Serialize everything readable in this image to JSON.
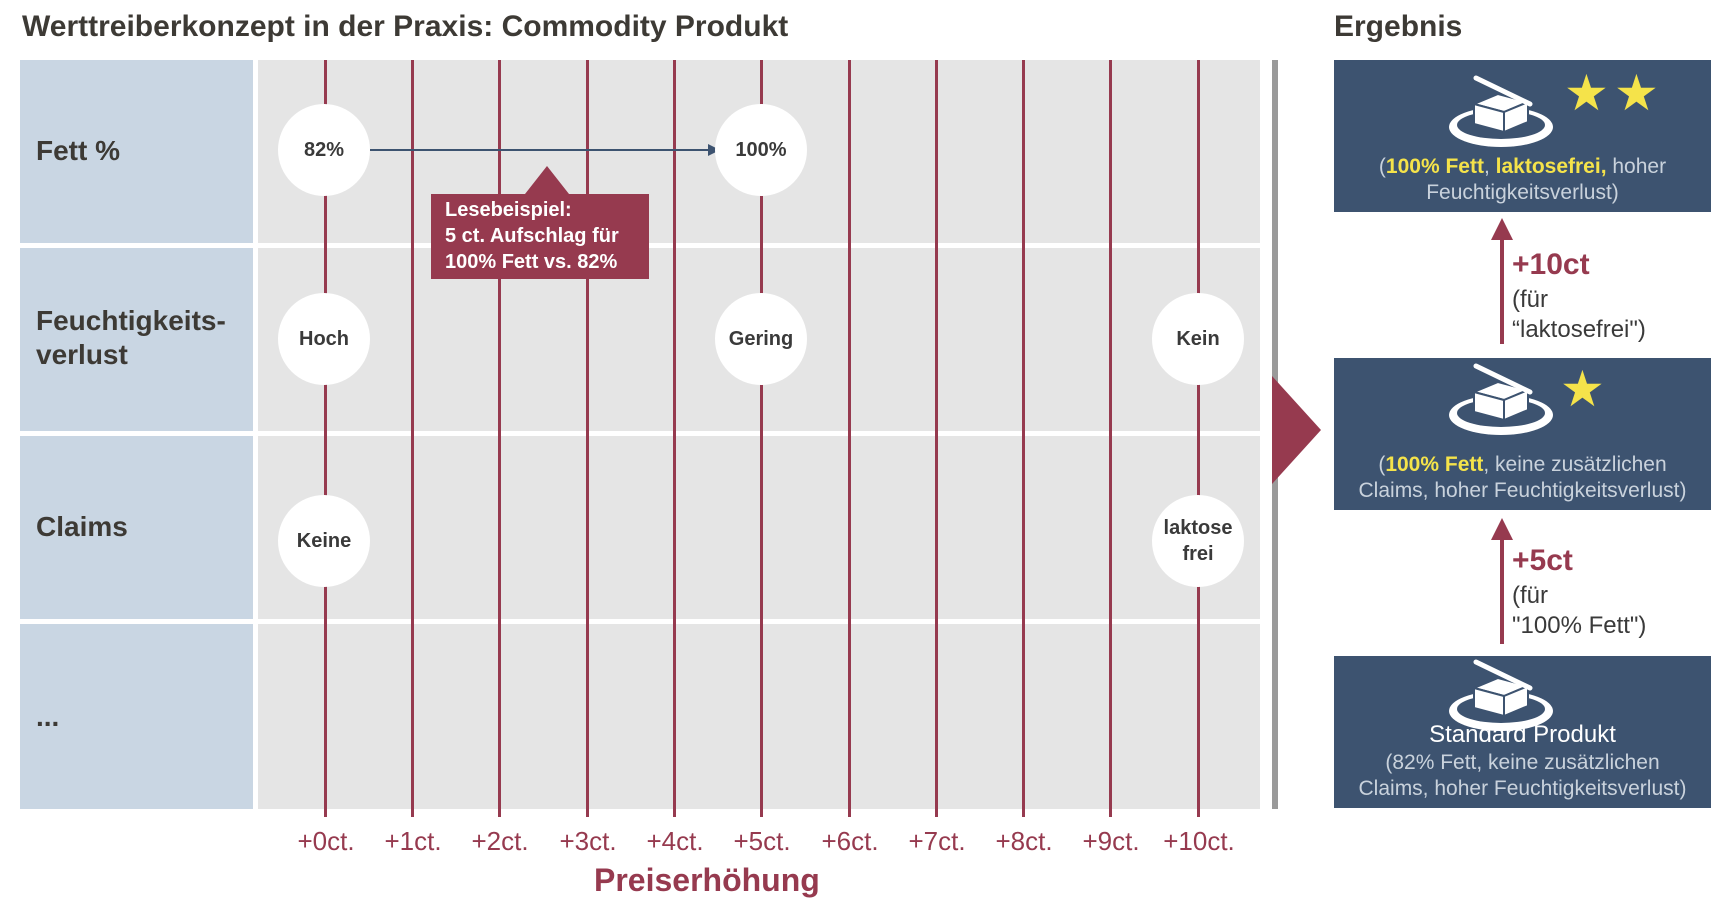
{
  "title": "Werttreiberkonzept  in der Praxis: Commodity Produkt",
  "result_title": "Ergebnis",
  "rows": [
    {
      "label_line1": "Fett %",
      "label_line2": ""
    },
    {
      "label_line1": "Feuchtigkeits-",
      "label_line2": "verlust"
    },
    {
      "label_line1": "Claims",
      "label_line2": ""
    },
    {
      "label_line1": "...",
      "label_line2": ""
    }
  ],
  "x_ticks": [
    "+0ct.",
    "+1ct.",
    "+2ct.",
    "+3ct.",
    "+4ct.",
    "+5ct.",
    "+6ct.",
    "+7ct.",
    "+8ct.",
    "+9ct.",
    "+10ct."
  ],
  "x_axis_label": "Preiserhöhung",
  "nodes": {
    "fett_82": "82%",
    "fett_100": "100%",
    "feucht_hoch": "Hoch",
    "feucht_gering": "Gering",
    "feucht_kein": "Kein",
    "claims_keine": "Keine",
    "claims_laktose_line1": "laktose",
    "claims_laktose_line2": "frei"
  },
  "callout": {
    "line1": "Lesebeispiel:",
    "line2": "5 ct. Aufschlag für",
    "line3": "100% Fett vs. 82%"
  },
  "results": {
    "top": {
      "open": "(",
      "hl1": "100% Fett",
      "sep1": ", ",
      "hl2": "laktosefrei,",
      "rest": " hoher",
      "line2": "Feuchtigkeitsverlust)",
      "stars": 2
    },
    "middle": {
      "open": "(",
      "hl1": "100% Fett",
      "rest": ", keine zusätzlichen",
      "line2": "Claims, hoher Feuchtigkeitsverlust)",
      "stars": 1
    },
    "bottom": {
      "name": "Standard Produkt",
      "line1": "(82% Fett, keine zusätzlichen",
      "line2": "Claims, hoher Feuchtigkeitsverlust)",
      "stars": 0
    }
  },
  "steps": {
    "upper": {
      "value": "+10ct",
      "note1": "(für",
      "note2": "“laktosefrei\")"
    },
    "lower": {
      "value": "+5ct",
      "note1": "(für",
      "note2": "\"100% Fett\")"
    }
  },
  "colors": {
    "accent": "#963a4f",
    "label_bg": "#c9d6e3",
    "grid_bg": "#e5e5e5",
    "result_bg": "#3d5370",
    "highlight": "#f5e34a"
  }
}
